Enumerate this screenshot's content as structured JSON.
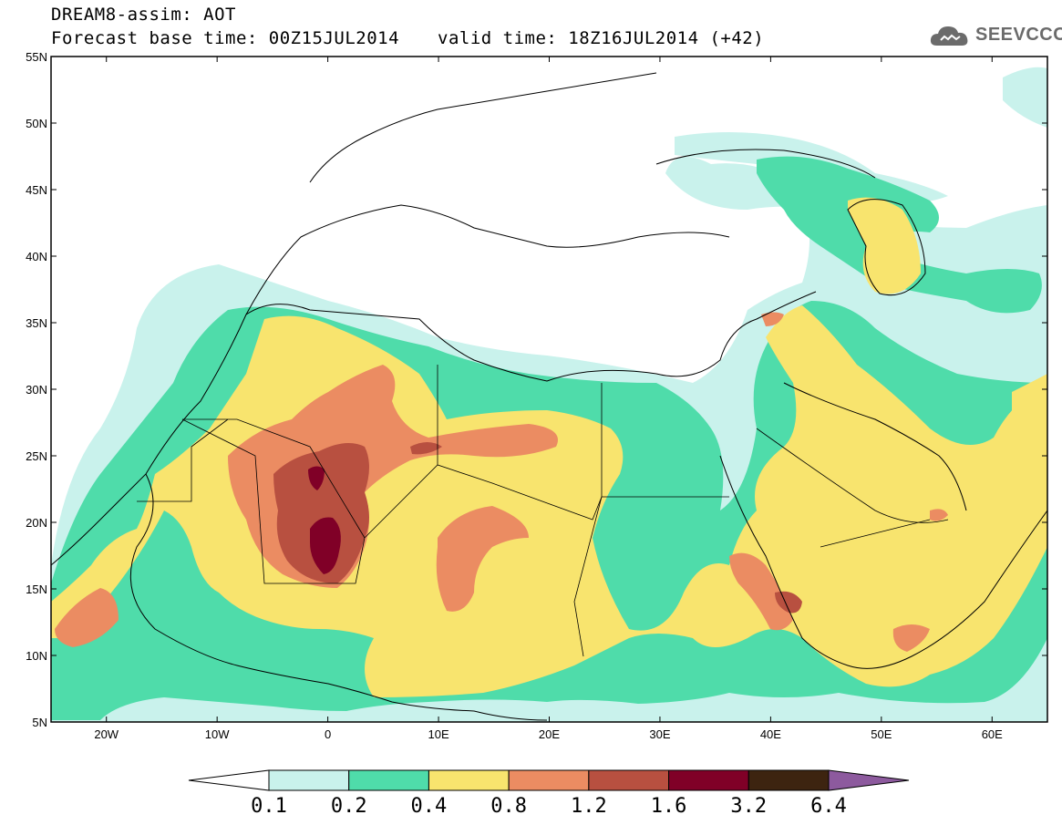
{
  "header": {
    "line1": "DREAM8-assim: AOT",
    "line2": "Forecast base time: 00Z15JUL2014",
    "valid": "valid time: 18Z16JUL2014 (+42)",
    "logo_text": "SEEVCCC",
    "logo_icon": "cloud-icon"
  },
  "map": {
    "lon_range": [
      -25,
      65
    ],
    "lat_range": [
      5,
      55
    ],
    "lat_ticks": [
      "5N",
      "10N",
      "15N",
      "20N",
      "25N",
      "30N",
      "35N",
      "40N",
      "45N",
      "50N",
      "55N"
    ],
    "lat_values": [
      5,
      10,
      15,
      20,
      25,
      30,
      35,
      40,
      45,
      50,
      55
    ],
    "lon_ticks": [
      "20W",
      "10W",
      "0",
      "10E",
      "20E",
      "30E",
      "40E",
      "50E",
      "60E"
    ],
    "lon_values": [
      -20,
      -10,
      0,
      10,
      20,
      30,
      40,
      50,
      60
    ]
  },
  "colorbar": {
    "labels": [
      "0.1",
      "0.2",
      "0.4",
      "0.8",
      "1.2",
      "1.6",
      "3.2",
      "6.4"
    ],
    "colors": [
      "#ffffff",
      "#c9f2ec",
      "#4fdcaa",
      "#f8e46e",
      "#eb8c62",
      "#b85040",
      "#800027",
      "#3d2410",
      "#8d5a9e"
    ]
  },
  "colors": {
    "level1": "#c9f2ec",
    "level2": "#4fdcaa",
    "level3": "#f8e46e",
    "level4": "#eb8c62",
    "level5": "#b85040",
    "level6": "#800027"
  }
}
